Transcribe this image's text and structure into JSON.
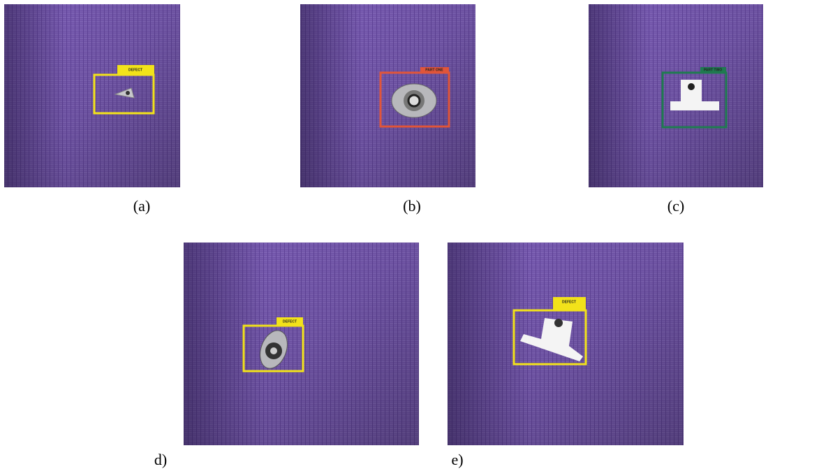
{
  "panels": [
    {
      "caption": "(a)",
      "label": "DEFECT"
    },
    {
      "caption": "(b)",
      "label": "PART ONE"
    },
    {
      "caption": "(c)",
      "label": "PART TWO"
    },
    {
      "caption": "d)",
      "label": "DEFECT"
    },
    {
      "caption": "e)",
      "label": "DEFECT"
    }
  ]
}
